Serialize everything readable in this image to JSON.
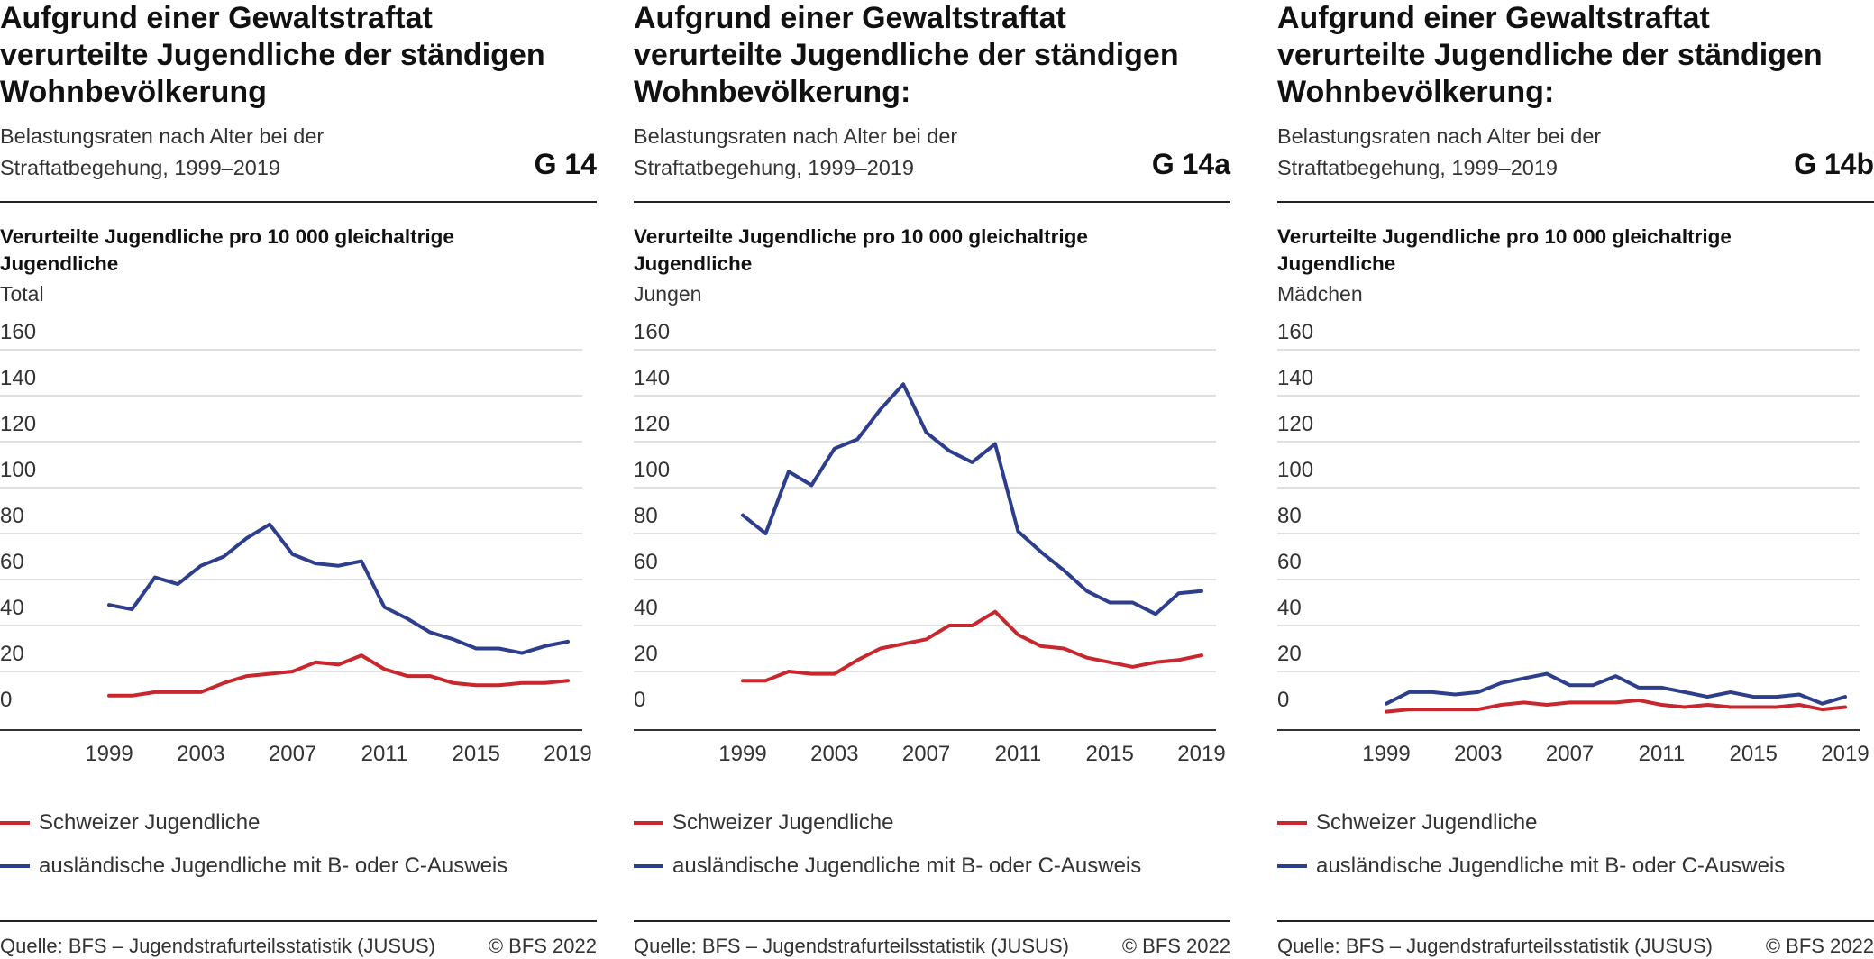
{
  "colors": {
    "swiss": "#c8282d",
    "foreign": "#2c3e8c",
    "grid": "#d6d6d6",
    "axis": "#333333"
  },
  "legend": {
    "swiss": "Schweizer Jugendliche",
    "foreign": "ausländische Jugendliche mit B- oder C-Ausweis"
  },
  "panels": [
    {
      "title": "Aufgrund einer Gewaltstraftat verurteilte Jugendliche der ständigen Wohnbevölkerung",
      "subtitle_line1": "Belastungsraten nach Alter bei der",
      "subtitle_line2": "Straftatbegehung, 1999–2019",
      "code": "G 14",
      "ylabel": "Verurteilte Jugendliche pro 10 000 gleichaltrige Jugendliche",
      "group": "Total",
      "source": "Quelle: BFS – Jugendstrafurteilsstatistik (JUSUS)",
      "copyright": "© BFS 2022"
    },
    {
      "title": "Aufgrund einer Gewaltstraftat verurteilte Jugendliche der ständigen Wohnbevölkerung:",
      "subtitle_line1": "Belastungsraten nach Alter bei der",
      "subtitle_line2": "Straftatbegehung, 1999–2019",
      "code": "G 14a",
      "ylabel": "Verurteilte Jugendliche pro 10 000 gleichaltrige Jugendliche",
      "group": "Jungen",
      "source": "Quelle: BFS – Jugendstrafurteilsstatistik (JUSUS)",
      "copyright": "© BFS 2022"
    },
    {
      "title": "Aufgrund einer Gewaltstraftat verurteilte Jugendliche der ständigen Wohnbevölkerung:",
      "subtitle_line1": "Belastungsraten nach Alter bei der",
      "subtitle_line2": "Straftatbegehung, 1999–2019",
      "code": "G 14b",
      "ylabel": "Verurteilte Jugendliche pro 10 000 gleichaltrige Jugendliche",
      "group": "Mädchen",
      "source": "Quelle: BFS – Jugendstrafurteilsstatistik (JUSUS)",
      "copyright": "© BFS 2022"
    }
  ],
  "chart_data": [
    {
      "type": "line",
      "title": "Aufgrund einer Gewaltstraftat verurteilte Jugendliche der ständigen Wohnbevölkerung",
      "ylabel": "Verurteilte Jugendliche pro 10 000 gleichaltrige Jugendliche",
      "x": [
        1999,
        2000,
        2001,
        2002,
        2003,
        2004,
        2005,
        2006,
        2007,
        2008,
        2009,
        2010,
        2011,
        2012,
        2013,
        2014,
        2015,
        2016,
        2017,
        2018,
        2019
      ],
      "xticks": [
        1999,
        2003,
        2007,
        2011,
        2015,
        2019
      ],
      "ylim": [
        0,
        160
      ],
      "yticks": [
        0,
        20,
        40,
        60,
        80,
        100,
        120,
        140,
        160
      ],
      "grid": true,
      "legend_position": "bottom",
      "series": [
        {
          "name": "Schweizer Jugendliche",
          "color": "#c8282d",
          "values": [
            9.5,
            9.5,
            11,
            11,
            11,
            15,
            18,
            19,
            20,
            24,
            23,
            27,
            21,
            18,
            18,
            15,
            14,
            14,
            15,
            15,
            16
          ]
        },
        {
          "name": "ausländische Jugendliche mit B- oder C-Ausweis",
          "color": "#2c3e8c",
          "values": [
            49,
            47,
            61,
            58,
            66,
            70,
            78,
            84,
            71,
            67,
            66,
            68,
            48,
            43,
            37,
            34,
            30,
            30,
            28,
            31,
            33
          ]
        }
      ]
    },
    {
      "type": "line",
      "title": "Aufgrund einer Gewaltstraftat verurteilte Jugendliche der ständigen Wohnbevölkerung:",
      "ylabel": "Verurteilte Jugendliche pro 10 000 gleichaltrige Jugendliche",
      "x": [
        1999,
        2000,
        2001,
        2002,
        2003,
        2004,
        2005,
        2006,
        2007,
        2008,
        2009,
        2010,
        2011,
        2012,
        2013,
        2014,
        2015,
        2016,
        2017,
        2018,
        2019
      ],
      "xticks": [
        1999,
        2003,
        2007,
        2011,
        2015,
        2019
      ],
      "ylim": [
        0,
        160
      ],
      "yticks": [
        0,
        20,
        40,
        60,
        80,
        100,
        120,
        140,
        160
      ],
      "grid": true,
      "legend_position": "bottom",
      "series": [
        {
          "name": "Schweizer Jugendliche",
          "color": "#c8282d",
          "values": [
            16,
            16,
            20,
            19,
            19,
            25,
            30,
            32,
            34,
            40,
            40,
            46,
            36,
            31,
            30,
            26,
            24,
            22,
            24,
            25,
            27
          ]
        },
        {
          "name": "ausländische Jugendliche mit B- oder C-Ausweis",
          "color": "#2c3e8c",
          "values": [
            88,
            80,
            107,
            101,
            117,
            121,
            134,
            145,
            124,
            116,
            111,
            119,
            81,
            72,
            64,
            55,
            50,
            50,
            45,
            54,
            55
          ]
        }
      ]
    },
    {
      "type": "line",
      "title": "Aufgrund einer Gewaltstraftat verurteilte Jugendliche der ständigen Wohnbevölkerung:",
      "ylabel": "Verurteilte Jugendliche pro 10 000 gleichaltrige Jugendliche",
      "x": [
        1999,
        2000,
        2001,
        2002,
        2003,
        2004,
        2005,
        2006,
        2007,
        2008,
        2009,
        2010,
        2011,
        2012,
        2013,
        2014,
        2015,
        2016,
        2017,
        2018,
        2019
      ],
      "xticks": [
        1999,
        2003,
        2007,
        2011,
        2015,
        2019
      ],
      "ylim": [
        0,
        160
      ],
      "yticks": [
        0,
        20,
        40,
        60,
        80,
        100,
        120,
        140,
        160
      ],
      "grid": true,
      "legend_position": "bottom",
      "series": [
        {
          "name": "Schweizer Jugendliche",
          "color": "#c8282d",
          "values": [
            2.5,
            3.5,
            3.5,
            3.5,
            3.5,
            5.5,
            6.5,
            5.5,
            6.5,
            6.5,
            6.5,
            7.5,
            5.5,
            4.5,
            5.5,
            4.5,
            4.5,
            4.5,
            5.5,
            3.5,
            4.5
          ]
        },
        {
          "name": "ausländische Jugendliche mit B- oder C-Ausweis",
          "color": "#2c3e8c",
          "values": [
            6,
            11,
            11,
            10,
            11,
            15,
            17,
            19,
            14,
            14,
            18,
            13,
            13,
            11,
            9,
            11,
            9,
            9,
            10,
            6,
            9
          ]
        }
      ]
    }
  ]
}
